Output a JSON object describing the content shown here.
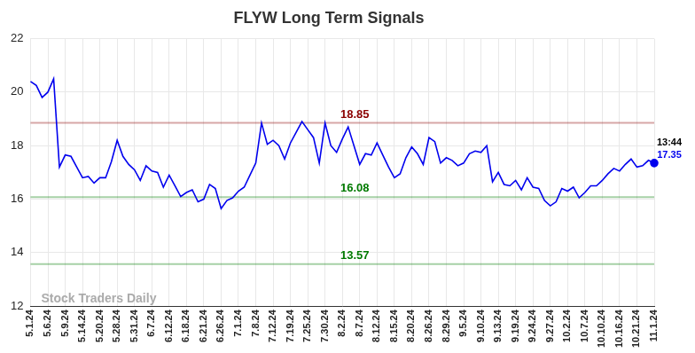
{
  "chart_data": {
    "type": "line",
    "title": "FLYW Long Term Signals",
    "categories": [
      "5.1.24",
      null,
      null,
      "5.6.24",
      null,
      null,
      "5.9.24",
      null,
      null,
      "5.14.24",
      null,
      null,
      "5.20.24",
      null,
      null,
      "5.28.24",
      null,
      null,
      "5.31.24",
      null,
      null,
      "6.7.24",
      null,
      null,
      "6.12.24",
      null,
      null,
      "6.18.24",
      null,
      null,
      "6.21.24",
      null,
      null,
      "6.26.24",
      null,
      null,
      "7.1.24",
      null,
      null,
      "7.8.24",
      null,
      null,
      "7.12.24",
      null,
      null,
      "7.19.24",
      null,
      null,
      "7.25.24",
      null,
      null,
      "7.30.24",
      null,
      null,
      "8.2.24",
      null,
      null,
      "8.7.24",
      null,
      null,
      "8.12.24",
      null,
      null,
      "8.15.24",
      null,
      null,
      "8.20.24",
      null,
      null,
      "8.26.24",
      null,
      null,
      "8.29.24",
      null,
      null,
      "9.5.24",
      null,
      null,
      "9.10.24",
      null,
      null,
      "9.13.24",
      null,
      null,
      "9.19.24",
      null,
      null,
      "9.24.24",
      null,
      null,
      "9.27.24",
      null,
      null,
      "10.2.24",
      null,
      null,
      "10.7.24",
      null,
      null,
      "10.10.24",
      null,
      null,
      "10.16.24",
      null,
      null,
      "10.21.24",
      null,
      null,
      "11.1.24"
    ],
    "values": [
      20.4,
      20.25,
      19.8,
      20.0,
      20.5,
      17.2,
      17.65,
      17.6,
      17.2,
      16.8,
      16.85,
      16.6,
      16.8,
      16.8,
      17.4,
      18.2,
      17.6,
      17.3,
      17.1,
      16.7,
      17.25,
      17.05,
      17.0,
      16.45,
      16.9,
      16.5,
      16.1,
      16.25,
      16.35,
      15.9,
      16.0,
      16.55,
      16.4,
      15.65,
      15.95,
      16.05,
      16.3,
      16.45,
      16.9,
      17.35,
      18.85,
      18.05,
      18.2,
      18.0,
      17.5,
      18.1,
      18.5,
      18.9,
      18.6,
      18.3,
      17.35,
      18.85,
      18.0,
      17.75,
      18.25,
      18.7,
      18.0,
      17.3,
      17.7,
      17.65,
      18.1,
      17.65,
      17.2,
      16.8,
      16.95,
      17.55,
      17.95,
      17.7,
      17.3,
      18.3,
      18.15,
      17.35,
      17.55,
      17.45,
      17.25,
      17.35,
      17.7,
      17.8,
      17.75,
      18.0,
      16.65,
      17.0,
      16.55,
      16.5,
      16.7,
      16.35,
      16.8,
      16.45,
      16.4,
      15.95,
      15.75,
      15.9,
      16.4,
      16.3,
      16.45,
      16.05,
      16.25,
      16.5,
      16.5,
      16.7,
      16.95,
      17.15,
      17.05,
      17.3,
      17.5,
      17.2,
      17.25,
      17.45,
      17.35
    ],
    "color": "#0000ee",
    "ylim": [
      12,
      22
    ],
    "yticks": [
      12,
      14,
      16,
      18,
      20,
      22
    ],
    "grid": true,
    "reference_lines": [
      {
        "value": 18.85,
        "label": "18.85",
        "color": "#8b0000"
      },
      {
        "value": 16.08,
        "label": "16.08",
        "color": "#007a00"
      },
      {
        "value": 13.57,
        "label": "13.57",
        "color": "#007a00"
      }
    ],
    "last_time": "13:44",
    "watermark": "Stock Traders Daily"
  }
}
